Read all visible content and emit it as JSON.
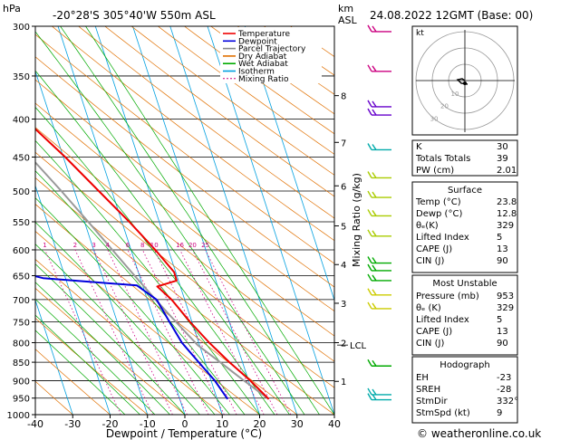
{
  "header": {
    "hpa_label": "hPa",
    "location": "-20°28'S  305°40'W  550m  ASL",
    "km_label": "km",
    "asl_label": "ASL",
    "datetime": "24.08.2022  12GMT  (Base: 00)"
  },
  "chart_data": {
    "type": "line",
    "title": "Skew-T log-P",
    "xlabel": "Dewpoint / Temperature (°C)",
    "ylabel": "hPa",
    "mixing_ratio_label": "Mixing Ratio (g/kg)",
    "xlim": [
      -40,
      40
    ],
    "ylim": [
      1000,
      300
    ],
    "x_ticks": [
      -40,
      -30,
      -20,
      -10,
      0,
      10,
      20,
      30,
      40
    ],
    "pressure_ticks": [
      300,
      350,
      400,
      450,
      500,
      550,
      600,
      650,
      700,
      750,
      800,
      850,
      900,
      950,
      1000
    ],
    "km_ticks": [
      {
        "label": "8",
        "p": 372
      },
      {
        "label": "7",
        "p": 430
      },
      {
        "label": "6",
        "p": 492
      },
      {
        "label": "5",
        "p": 557
      },
      {
        "label": "4",
        "p": 628
      },
      {
        "label": "3",
        "p": 708
      },
      {
        "label": "2",
        "p": 800
      },
      {
        "label": "1",
        "p": 902
      }
    ],
    "lcl": {
      "label": "LCL",
      "p": 806
    },
    "mixing_ratio_values": [
      "1",
      "2",
      "3",
      "4",
      "6",
      "8",
      "10",
      "16",
      "20",
      "25"
    ],
    "legend": [
      {
        "label": "Temperature",
        "color": "#ee0000"
      },
      {
        "label": "Dewpoint",
        "color": "#0000dd"
      },
      {
        "label": "Parcel Trajectory",
        "color": "#888888"
      },
      {
        "label": "Dry Adiabat",
        "color": "#e07000"
      },
      {
        "label": "Wet Adiabat",
        "color": "#00aa00"
      },
      {
        "label": "Isotherm",
        "color": "#00a0e0"
      },
      {
        "label": "Mixing Ratio",
        "color": "#cc0080"
      }
    ],
    "series": [
      {
        "name": "Temperature",
        "points": [
          [
            953,
            23.8
          ],
          [
            900,
            20.5
          ],
          [
            850,
            16.5
          ],
          [
            800,
            12.8
          ],
          [
            750,
            9.5
          ],
          [
            700,
            6.5
          ],
          [
            672,
            3.8
          ],
          [
            660,
            9.5
          ],
          [
            643,
            9.6
          ],
          [
            600,
            6.5
          ],
          [
            550,
            2.0
          ],
          [
            500,
            -3.5
          ],
          [
            450,
            -9.5
          ],
          [
            400,
            -17.0
          ],
          [
            350,
            -26.0
          ],
          [
            300,
            -36.0
          ]
        ]
      },
      {
        "name": "Dewpoint",
        "points": [
          [
            953,
            12.8
          ],
          [
            930,
            12.0
          ],
          [
            900,
            11.0
          ],
          [
            850,
            8.3
          ],
          [
            800,
            5.5
          ],
          [
            750,
            4.0
          ],
          [
            700,
            2.5
          ],
          [
            670,
            -1.5
          ],
          [
            655,
            -26.0
          ],
          [
            645,
            -31.0
          ],
          [
            600,
            -36.0
          ],
          [
            550,
            -42.0
          ],
          [
            500,
            -46.0
          ],
          [
            450,
            -55.0
          ],
          [
            425,
            -60.0
          ],
          [
            400,
            -58.0
          ],
          [
            380,
            -46.0
          ],
          [
            360,
            -58.0
          ],
          [
            350,
            -62.0
          ],
          [
            300,
            -70.0
          ]
        ]
      },
      {
        "name": "Parcel Trajectory",
        "points": [
          [
            953,
            23.8
          ],
          [
            900,
            18.8
          ],
          [
            850,
            14.0
          ],
          [
            806,
            9.5
          ],
          [
            750,
            5.7
          ],
          [
            700,
            2.2
          ],
          [
            650,
            -1.3
          ],
          [
            600,
            -5.0
          ],
          [
            550,
            -9.0
          ],
          [
            500,
            -13.5
          ],
          [
            450,
            -18.8
          ],
          [
            400,
            -25.0
          ],
          [
            350,
            -32.5
          ],
          [
            300,
            -41.5
          ]
        ]
      }
    ]
  },
  "hodograph": {
    "kt_label": "kt",
    "ring_labels": [
      "10",
      "20",
      "30"
    ]
  },
  "indices": [
    {
      "label": "K",
      "value": "30"
    },
    {
      "label": "Totals Totals",
      "value": "39"
    },
    {
      "label": "PW (cm)",
      "value": "2.01"
    }
  ],
  "surface": {
    "title": "Surface",
    "rows": [
      {
        "label": "Temp (°C)",
        "value": "23.8"
      },
      {
        "label": "Dewp (°C)",
        "value": "12.8"
      },
      {
        "label": "θₑ(K)",
        "value": "329"
      },
      {
        "label": "Lifted Index",
        "value": "5"
      },
      {
        "label": "CAPE (J)",
        "value": "13"
      },
      {
        "label": "CIN (J)",
        "value": "90"
      }
    ]
  },
  "most_unstable": {
    "title": "Most Unstable",
    "rows": [
      {
        "label": "Pressure (mb)",
        "value": "953"
      },
      {
        "label": "θₑ (K)",
        "value": "329"
      },
      {
        "label": "Lifted Index",
        "value": "5"
      },
      {
        "label": "CAPE (J)",
        "value": "13"
      },
      {
        "label": "CIN (J)",
        "value": "90"
      }
    ]
  },
  "hodograph_table": {
    "title": "Hodograph",
    "rows": [
      {
        "label": "EH",
        "value": "-23"
      },
      {
        "label": "SREH",
        "value": "-28"
      },
      {
        "label": "StmDir",
        "value": "332°"
      },
      {
        "label": "StmSpd (kt)",
        "value": "9"
      }
    ]
  },
  "footer": {
    "copyright": "© weatheronline.co.uk"
  },
  "colors": {
    "temperature": "#ee0000",
    "dewpoint": "#0000dd",
    "parcel": "#999999",
    "dry": "#e07000",
    "wet": "#00aa00",
    "isotherm": "#00a0e0",
    "mixing": "#cc0080"
  }
}
